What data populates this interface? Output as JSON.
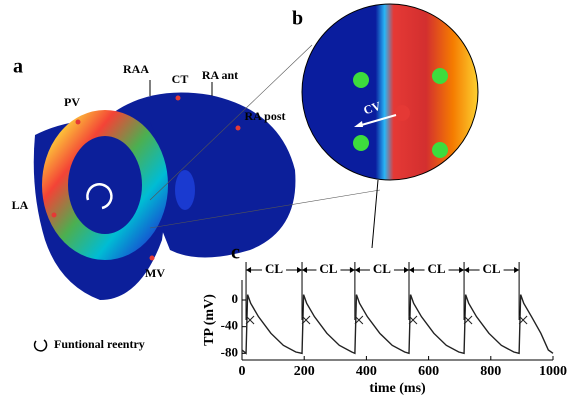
{
  "panel_labels": [
    "a",
    "b",
    "c"
  ],
  "heart_labels": [
    "RAA",
    "CT",
    "RA ant",
    "PV",
    "RA post",
    "LA",
    "MV"
  ],
  "zoom_label": "CV",
  "legend": "Funtional reentry",
  "chart_data": {
    "type": "line",
    "xlabel": "time (ms)",
    "ylabel": "TP (mV)",
    "xlim": [
      0,
      1000
    ],
    "ylim": [
      -90,
      30
    ],
    "xticks": [
      0,
      200,
      400,
      600,
      800,
      1000
    ],
    "yticks": [
      -80,
      -40,
      0
    ],
    "color": "#222222",
    "x": [
      0,
      13,
      18,
      28,
      53,
      93,
      133,
      173,
      193,
      198,
      208,
      233,
      273,
      313,
      353,
      363,
      368,
      378,
      403,
      443,
      483,
      523,
      537,
      542,
      552,
      577,
      617,
      657,
      697,
      714,
      719,
      729,
      754,
      794,
      834,
      874,
      891,
      896,
      906,
      931,
      961,
      985,
      1000
    ],
    "values": [
      -75,
      -80,
      8,
      -5,
      -25,
      -50,
      -68,
      -78,
      -80,
      8,
      -5,
      -25,
      -50,
      -68,
      -78,
      -80,
      8,
      -5,
      -25,
      -50,
      -68,
      -78,
      -80,
      8,
      -5,
      -25,
      -50,
      -68,
      -78,
      -80,
      8,
      -5,
      -25,
      -50,
      -68,
      -78,
      -80,
      8,
      -5,
      -25,
      -50,
      -75,
      -80
    ],
    "markers": {
      "x": [
        13,
        193,
        363,
        537,
        714,
        891
      ],
      "values": [
        -30,
        -30,
        -30,
        -30,
        -30,
        -30
      ]
    },
    "cl_bounds": [
      13,
      193,
      363,
      537,
      714,
      891
    ],
    "cl_labels": [
      "CL",
      "CL",
      "CL",
      "CL",
      "CL"
    ]
  }
}
